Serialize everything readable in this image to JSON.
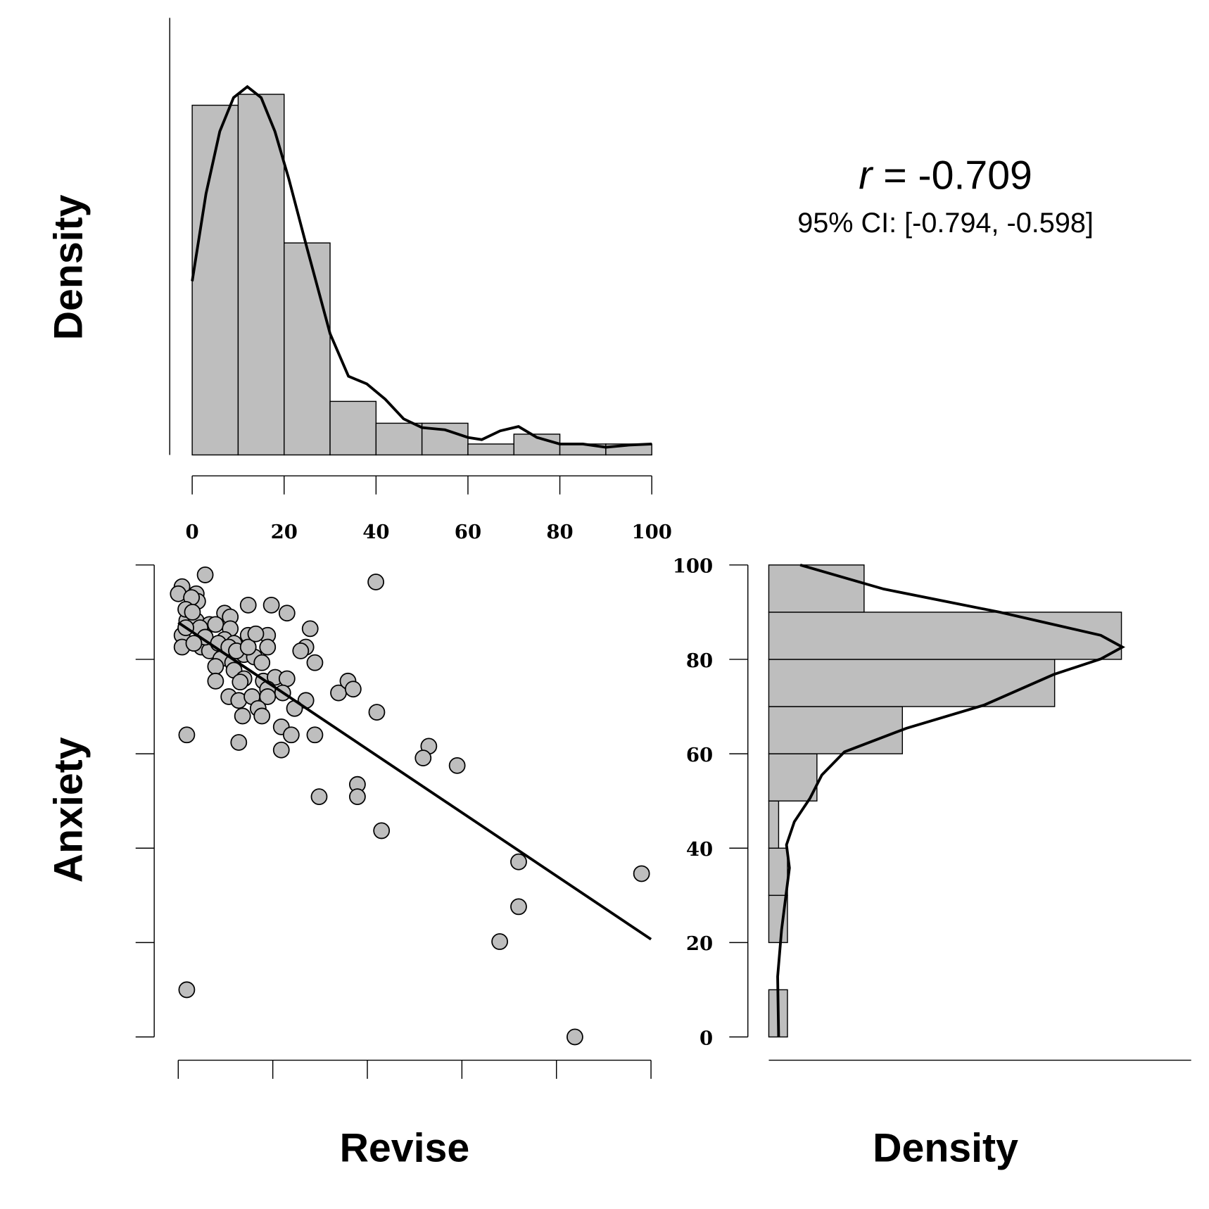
{
  "chart_data": [
    {
      "type": "histogram",
      "orientation": "vertical",
      "ylabel": "Density",
      "color": "#bebebe",
      "bins": [
        0,
        10,
        20,
        30,
        40,
        50,
        60,
        70,
        80,
        90,
        100
      ],
      "values": [
        0.032,
        0.033,
        0.0194,
        0.0049,
        0.0029,
        0.0029,
        0.001,
        0.0019,
        0.001,
        0.001
      ],
      "density": {
        "at": [
          0,
          3,
          6,
          9,
          12,
          15,
          18,
          21,
          25,
          30,
          34,
          38,
          42,
          46,
          50,
          55,
          60,
          63,
          67,
          71,
          75,
          80,
          85,
          90,
          95,
          100
        ],
        "values": [
          0.0159,
          0.0239,
          0.0296,
          0.0327,
          0.0337,
          0.0327,
          0.0296,
          0.0253,
          0.0189,
          0.0111,
          0.0072,
          0.0065,
          0.0051,
          0.0033,
          0.0025,
          0.0023,
          0.0016,
          0.0014,
          0.0022,
          0.0026,
          0.0016,
          0.001,
          0.001,
          0.0007,
          0.0009,
          0.001
        ]
      },
      "xlim": [
        0,
        100
      ],
      "xticks": [
        0,
        20,
        40,
        60,
        80,
        100
      ],
      "ylim": [
        0,
        0.04
      ]
    },
    {
      "type": "scatter",
      "xlabel": "Revise",
      "ylabel": "Anxiety",
      "color": "#bebebe",
      "x": [
        0.8,
        0,
        5.7,
        41.8,
        3.8,
        4.1,
        2.8,
        14.8,
        19.7,
        23.0,
        9.8,
        11.0,
        1.8,
        3.8,
        6.6,
        7.9,
        11.0,
        27.9,
        0.8,
        5.2,
        9.8,
        14.8,
        18.9,
        0.8,
        4.9,
        11.8,
        18.9,
        27.0,
        25.9,
        6.6,
        9.0,
        11.5,
        13.9,
        16.1,
        17.7,
        28.9,
        7.9,
        11.8,
        7.9,
        13.9,
        18.0,
        20.5,
        23.0,
        18.9,
        22.1,
        10.7,
        12.8,
        15.6,
        18.9,
        27.0,
        24.6,
        16.9,
        13.6,
        17.7,
        33.9,
        35.9,
        37.0,
        42.0,
        21.8,
        23.9,
        28.9,
        1.8,
        12.8,
        21.8,
        53.0,
        51.8,
        59.0,
        37.9,
        37.9,
        29.8,
        43.0,
        72.0,
        72.0,
        68.0,
        98.0,
        1.8,
        83.9,
        1.6,
        3.0,
        4.6,
        5.7,
        8.5,
        10.7,
        12.3,
        1.6,
        3.3,
        14.8,
        16.4,
        13.1
      ],
      "y": [
        95.4,
        93.9,
        97.9,
        96.4,
        93.9,
        92.3,
        93.1,
        91.5,
        91.5,
        89.8,
        89.8,
        89.0,
        88.2,
        88.2,
        87.4,
        87.4,
        86.5,
        86.5,
        85.1,
        85.1,
        84.2,
        85.1,
        85.1,
        82.6,
        82.6,
        83.4,
        82.6,
        82.6,
        81.8,
        81.8,
        80.1,
        79.3,
        81.0,
        80.5,
        79.3,
        79.3,
        78.5,
        77.7,
        75.4,
        75.9,
        75.4,
        76.2,
        75.9,
        73.7,
        72.9,
        72.1,
        71.3,
        72.1,
        72.1,
        71.3,
        69.6,
        69.6,
        68.0,
        68.0,
        72.9,
        75.4,
        73.7,
        68.8,
        65.7,
        64.0,
        64.0,
        64.0,
        62.4,
        60.8,
        61.6,
        59.1,
        57.5,
        53.5,
        50.9,
        50.9,
        43.7,
        37.1,
        27.6,
        20.2,
        34.6,
        10.0,
        0,
        90.6,
        90.0,
        86.7,
        84.7,
        83.4,
        82.6,
        81.8,
        86.7,
        83.4,
        82.6,
        85.4,
        75.2
      ],
      "fit": {
        "intercept": 87.8,
        "slope": -0.671
      },
      "xlim": [
        0,
        100
      ],
      "xticks": [
        0,
        20,
        40,
        60,
        80,
        100
      ],
      "ylim": [
        0,
        100
      ],
      "yticks": [
        0,
        20,
        40,
        60,
        80,
        100
      ],
      "annotation": {
        "symbol": "r",
        "text": "= -0.709",
        "ci": "95% CI: [-0.794, -0.598]"
      }
    },
    {
      "type": "histogram",
      "orientation": "horizontal",
      "xlabel": "Density",
      "color": "#bebebe",
      "bins": [
        0,
        10,
        20,
        30,
        40,
        50,
        60,
        70,
        80,
        90,
        100
      ],
      "values": [
        0.0019,
        0,
        0.0019,
        0.0019,
        0.001,
        0.0049,
        0.0136,
        0.0291,
        0.0359,
        0.0097
      ],
      "density": {
        "at": [
          100,
          94.9,
          90.0,
          85.1,
          82.6,
          80.1,
          76.8,
          70.3,
          65.4,
          60.4,
          55.5,
          50.6,
          45.6,
          40.7,
          35.8,
          30.9,
          22.7,
          12.8,
          0
        ],
        "values": [
          0.0032,
          0.0117,
          0.0235,
          0.0338,
          0.036,
          0.0338,
          0.029,
          0.0219,
          0.014,
          0.0077,
          0.0054,
          0.0042,
          0.0026,
          0.0018,
          0.0021,
          0.0018,
          0.0013,
          0.0009,
          0.001
        ]
      },
      "xlim": [
        0,
        0.043
      ],
      "ylim": [
        0,
        100
      ],
      "yticks": [
        0,
        20,
        40,
        60,
        80,
        100
      ]
    }
  ]
}
